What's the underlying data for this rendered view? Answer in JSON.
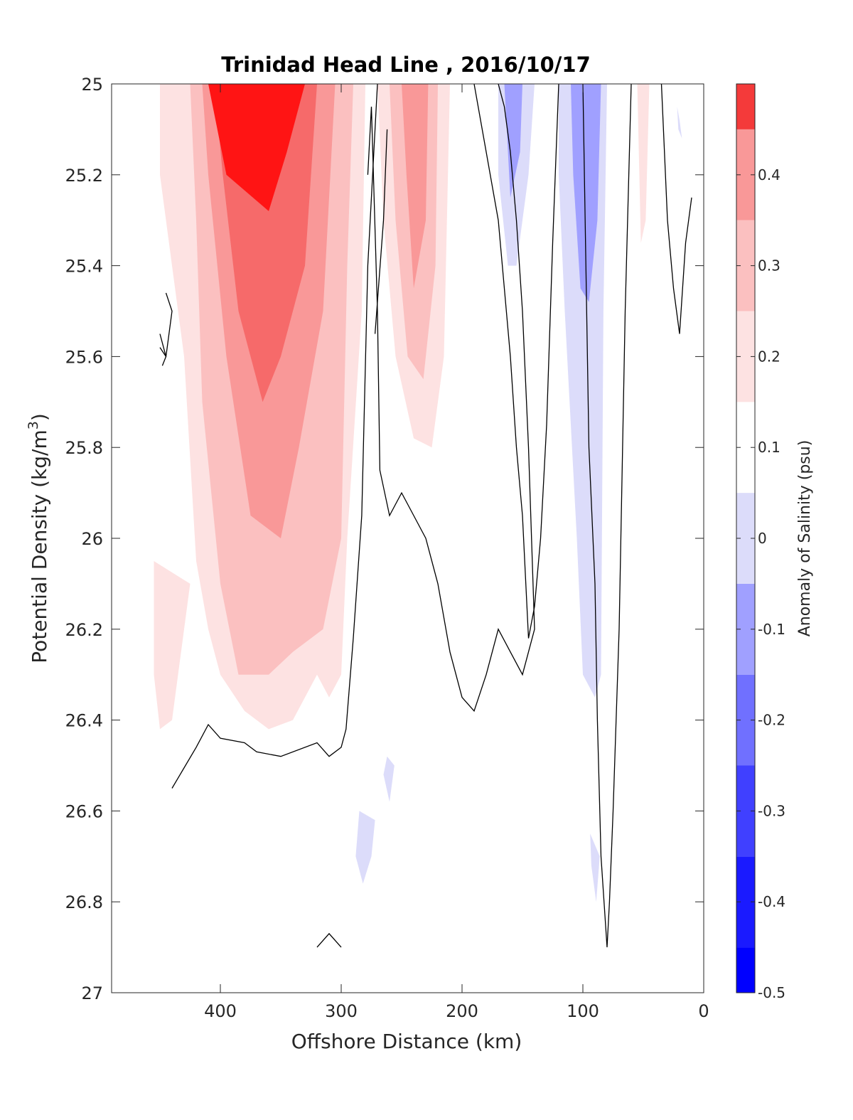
{
  "chart_data": {
    "type": "contour",
    "title": "Trinidad Head Line , 2016/10/17",
    "xlabel": "Offshore Distance (km)",
    "ylabel_main": "Potential Density (kg/m",
    "ylabel_sup": "3",
    "ylabel_close": ")",
    "xlim": [
      490,
      0
    ],
    "ylim": [
      25,
      27
    ],
    "x_ticks": [
      400,
      300,
      200,
      100,
      0
    ],
    "y_ticks": [
      25,
      25.2,
      25.4,
      25.6,
      25.8,
      26,
      26.2,
      26.4,
      26.6,
      26.8,
      27
    ],
    "colorbar": {
      "label": "Anomaly of Salinity (psu)",
      "range": [
        -0.5,
        0.5
      ],
      "levels": [
        -0.5,
        -0.45,
        -0.35,
        -0.25,
        -0.15,
        -0.05,
        0.05,
        0.15,
        0.25,
        0.35,
        0.45,
        0.5
      ],
      "ticks": [
        -0.5,
        -0.4,
        -0.3,
        -0.2,
        -0.1,
        0,
        0.1,
        0.2,
        0.3,
        0.4
      ],
      "tick_labels": [
        "-0.5",
        "-0.4",
        "-0.3",
        "-0.2",
        "-0.1",
        "0",
        "0.1",
        "0.2",
        "0.3",
        "0.4"
      ],
      "colors": [
        "#0000ff",
        "#1a1aff",
        "#4040ff",
        "#7070ff",
        "#a0a0ff",
        "#dcdcfa",
        "#ffffff",
        "#fde2e2",
        "#fbc0c0",
        "#f99898",
        "#f66a6a",
        "#f43a3a",
        "#ff1414",
        "#ff0000"
      ]
    },
    "red_core": {
      "anomaly": 0.45,
      "x": [
        380,
        410,
        395,
        360,
        345,
        330
      ],
      "y": [
        25,
        25,
        25.2,
        25.28,
        25.15,
        25
      ]
    },
    "positive_regions": [
      {
        "level": 0.05,
        "x": [
          450,
          280,
          283,
          295,
          300,
          310,
          320,
          340,
          360,
          380,
          400,
          410,
          420,
          430,
          440,
          450
        ],
        "y": [
          25,
          25,
          25.5,
          26.0,
          26.3,
          26.35,
          26.3,
          26.4,
          26.42,
          26.38,
          26.3,
          26.2,
          26.05,
          25.6,
          25.4,
          25.2
        ]
      },
      {
        "level": 0.15,
        "x": [
          425,
          290,
          295,
          300,
          315,
          340,
          360,
          385,
          400,
          415,
          420
        ],
        "y": [
          25,
          25,
          25.4,
          26.0,
          26.2,
          26.25,
          26.3,
          26.3,
          26.1,
          25.7,
          25.3
        ]
      },
      {
        "level": 0.25,
        "x": [
          415,
          305,
          315,
          335,
          350,
          375,
          395,
          410
        ],
        "y": [
          25,
          25,
          25.5,
          25.8,
          26.0,
          25.95,
          25.6,
          25.2
        ]
      },
      {
        "level": 0.35,
        "x": [
          405,
          320,
          330,
          350,
          365,
          385,
          398
        ],
        "y": [
          25,
          25,
          25.4,
          25.6,
          25.7,
          25.5,
          25.2
        ]
      },
      {
        "level": 0.05,
        "x": [
          270,
          210,
          215,
          225,
          240,
          255,
          265
        ],
        "y": [
          25,
          25,
          25.6,
          25.8,
          25.78,
          25.6,
          25.3
        ]
      },
      {
        "level": 0.15,
        "x": [
          260,
          220,
          222,
          232,
          245,
          255
        ],
        "y": [
          25,
          25,
          25.4,
          25.65,
          25.6,
          25.3
        ]
      },
      {
        "level": 0.25,
        "x": [
          250,
          228,
          230,
          240,
          246
        ],
        "y": [
          25,
          25,
          25.3,
          25.45,
          25.2
        ]
      },
      {
        "level": 0.05,
        "x": [
          455,
          425,
          430,
          440,
          450,
          455
        ],
        "y": [
          26.05,
          26.1,
          26.2,
          26.4,
          26.42,
          26.3
        ]
      },
      {
        "level": 0.05,
        "x": [
          55,
          45,
          48,
          52
        ],
        "y": [
          25,
          25,
          25.3,
          25.35
        ]
      }
    ],
    "negative_regions": [
      {
        "level": -0.05,
        "x": [
          170,
          140,
          145,
          155,
          162,
          170
        ],
        "y": [
          25,
          25,
          25.2,
          25.4,
          25.4,
          25.2
        ]
      },
      {
        "level": -0.1,
        "x": [
          165,
          150,
          152,
          160
        ],
        "y": [
          25,
          25,
          25.15,
          25.25
        ]
      },
      {
        "level": -0.05,
        "x": [
          120,
          80,
          83,
          85,
          90,
          100,
          105,
          115,
          120
        ],
        "y": [
          25,
          25,
          25.5,
          26.3,
          26.35,
          26.3,
          26.0,
          25.5,
          25.2
        ]
      },
      {
        "level": -0.1,
        "x": [
          110,
          85,
          88,
          95,
          102,
          108
        ],
        "y": [
          25,
          25,
          25.3,
          25.48,
          25.45,
          25.2
        ]
      },
      {
        "level": -0.15,
        "x": [
          100,
          92,
          95,
          98
        ],
        "y": [
          25,
          25,
          25.1,
          25.05
        ]
      },
      {
        "level": -0.05,
        "x": [
          285,
          272,
          275,
          282,
          288
        ],
        "y": [
          26.6,
          26.62,
          26.7,
          26.76,
          26.7
        ]
      },
      {
        "level": -0.05,
        "x": [
          262,
          256,
          260,
          265
        ],
        "y": [
          26.48,
          26.5,
          26.58,
          26.52
        ]
      },
      {
        "level": -0.05,
        "x": [
          94,
          86,
          89,
          93
        ],
        "y": [
          26.65,
          26.7,
          26.8,
          26.72
        ]
      },
      {
        "level": -0.05,
        "x": [
          22,
          20,
          18,
          21
        ],
        "y": [
          25.05,
          25.08,
          25.12,
          25.1
        ]
      }
    ],
    "zero_contours": [
      {
        "x": [
          270,
          278,
          283,
          290,
          296,
          300,
          310,
          320,
          350,
          370,
          380,
          400,
          410,
          420,
          440
        ],
        "y": [
          25,
          25.4,
          25.95,
          26.22,
          26.42,
          26.46,
          26.48,
          26.45,
          26.48,
          26.47,
          26.45,
          26.44,
          26.41,
          26.46,
          26.55
        ]
      },
      {
        "x": [
          278,
          275,
          270,
          268,
          260,
          250,
          240,
          230,
          220,
          210,
          200,
          190,
          180,
          170,
          160,
          150,
          140,
          145,
          150,
          155,
          160,
          165,
          170
        ],
        "y": [
          25.2,
          25.05,
          25.5,
          25.85,
          25.95,
          25.9,
          25.95,
          26.0,
          26.1,
          26.25,
          26.35,
          26.38,
          26.3,
          26.2,
          26.25,
          26.3,
          26.2,
          25.8,
          25.5,
          25.3,
          25.15,
          25.05,
          25
        ]
      },
      {
        "x": [
          262,
          265,
          272
        ],
        "y": [
          25.1,
          25.3,
          25.55
        ]
      },
      {
        "x": [
          120,
          125,
          130,
          135,
          140,
          145,
          150,
          155,
          160,
          165,
          170,
          180,
          190
        ],
        "y": [
          25,
          25.35,
          25.75,
          26.0,
          26.15,
          26.22,
          25.95,
          25.8,
          25.6,
          25.45,
          25.3,
          25.15,
          25
        ]
      },
      {
        "x": [
          60,
          65,
          70,
          75,
          78,
          80,
          85,
          88,
          90,
          95,
          100
        ],
        "y": [
          25,
          25.5,
          26.2,
          26.6,
          26.8,
          26.9,
          26.7,
          26.4,
          26.1,
          25.8,
          25
        ]
      },
      {
        "x": [
          35,
          30,
          25,
          20,
          15,
          10
        ],
        "y": [
          25,
          25.3,
          25.45,
          25.55,
          25.35,
          25.25
        ]
      },
      {
        "x": [
          445,
          440,
          445,
          450
        ],
        "y": [
          25.46,
          25.5,
          25.6,
          25.55
        ]
      },
      {
        "x": [
          450,
          445,
          448
        ],
        "y": [
          25.58,
          25.6,
          25.62
        ]
      },
      {
        "x": [
          320,
          310,
          300
        ],
        "y": [
          26.9,
          26.87,
          26.9
        ]
      }
    ]
  }
}
